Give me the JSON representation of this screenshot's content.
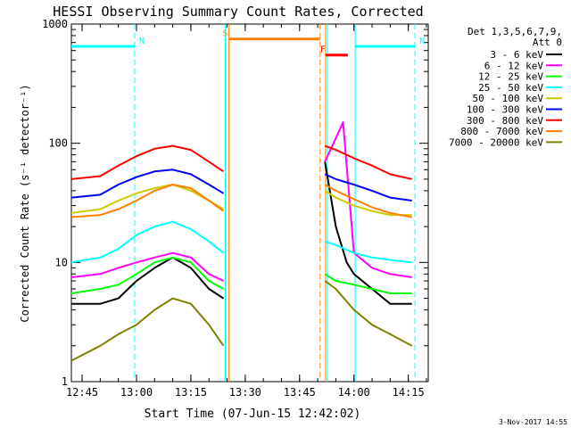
{
  "chart_data": {
    "type": "line",
    "title": "HESSI Observing Summary Count Rates, Corrected",
    "xlabel": "Start Time (07-Jun-15 12:42:02)",
    "ylabel": "Corrected Count Rate (s⁻¹ detector⁻¹)",
    "xscale": "time",
    "xlim": [
      "12:42:02",
      "14:20:30"
    ],
    "xticks": [
      "12:45",
      "13:00",
      "13:15",
      "13:30",
      "13:45",
      "14:00",
      "14:15"
    ],
    "yscale": "log",
    "ylim": [
      1,
      1000
    ],
    "yticks": [
      "1",
      "10",
      "100",
      "1000"
    ],
    "legend_position": "top-right",
    "legend_header": [
      "Det 1,3,5,6,7,9,",
      "Att 0"
    ],
    "series": [
      {
        "name": "3 - 6 keV",
        "color": "#000000",
        "segments": [
          {
            "x": [
              "12:42",
              "12:50",
              "12:55",
              "13:00",
              "13:05",
              "13:10",
              "13:15",
              "13:20",
              "13:24"
            ],
            "y": [
              4.5,
              4.5,
              5,
              7,
              9,
              11,
              9,
              6,
              5
            ]
          },
          {
            "x": [
              "13:52",
              "13:55",
              "13:58",
              "14:00",
              "14:05",
              "14:10",
              "14:16"
            ],
            "y": [
              70,
              20,
              10,
              8,
              6,
              4.5,
              4.5
            ]
          }
        ]
      },
      {
        "name": "6 - 12 keV",
        "color": "#ff00ff",
        "segments": [
          {
            "x": [
              "12:42",
              "12:50",
              "12:55",
              "13:00",
              "13:05",
              "13:10",
              "13:15",
              "13:20",
              "13:24"
            ],
            "y": [
              7.5,
              8,
              9,
              10,
              11,
              12,
              11,
              8,
              7
            ]
          },
          {
            "x": [
              "13:52",
              "13:55",
              "13:57",
              "14:00",
              "14:05",
              "14:10",
              "14:16"
            ],
            "y": [
              70,
              110,
              150,
              12,
              9,
              8,
              7.5
            ]
          }
        ]
      },
      {
        "name": "12 - 25 keV",
        "color": "#00ff00",
        "segments": [
          {
            "x": [
              "12:42",
              "12:50",
              "12:55",
              "13:00",
              "13:05",
              "13:10",
              "13:15",
              "13:20",
              "13:24"
            ],
            "y": [
              5.5,
              6,
              6.5,
              8,
              10,
              11,
              10,
              7,
              6
            ]
          },
          {
            "x": [
              "13:52",
              "13:55",
              "14:00",
              "14:05",
              "14:10",
              "14:16"
            ],
            "y": [
              8,
              7,
              6.5,
              6,
              5.5,
              5.5
            ]
          }
        ]
      },
      {
        "name": "25 - 50 keV",
        "color": "#00ffff",
        "segments": [
          {
            "x": [
              "12:42",
              "12:50",
              "12:55",
              "13:00",
              "13:05",
              "13:10",
              "13:15",
              "13:20",
              "13:24"
            ],
            "y": [
              10,
              11,
              13,
              17,
              20,
              22,
              19,
              15,
              12
            ]
          },
          {
            "x": [
              "13:52",
              "13:55",
              "14:00",
              "14:05",
              "14:10",
              "14:16"
            ],
            "y": [
              15,
              14,
              12,
              11,
              10.5,
              10
            ]
          }
        ]
      },
      {
        "name": "50 - 100 keV",
        "color": "#cccc00",
        "segments": [
          {
            "x": [
              "12:42",
              "12:50",
              "12:55",
              "13:00",
              "13:05",
              "13:10",
              "13:15",
              "13:20",
              "13:24"
            ],
            "y": [
              26,
              28,
              33,
              38,
              42,
              45,
              40,
              33,
              28
            ]
          },
          {
            "x": [
              "13:52",
              "13:55",
              "14:00",
              "14:05",
              "14:10",
              "14:16"
            ],
            "y": [
              40,
              35,
              30,
              27,
              25,
              25
            ]
          }
        ]
      },
      {
        "name": "100 - 300 keV",
        "color": "#0000ff",
        "segments": [
          {
            "x": [
              "12:42",
              "12:50",
              "12:55",
              "13:00",
              "13:05",
              "13:10",
              "13:15",
              "13:20",
              "13:24"
            ],
            "y": [
              35,
              37,
              45,
              52,
              58,
              60,
              55,
              45,
              38
            ]
          },
          {
            "x": [
              "13:52",
              "13:55",
              "14:00",
              "14:05",
              "14:10",
              "14:16"
            ],
            "y": [
              55,
              50,
              45,
              40,
              35,
              33
            ]
          }
        ]
      },
      {
        "name": "300 - 800 keV",
        "color": "#ff0000",
        "segments": [
          {
            "x": [
              "12:42",
              "12:50",
              "12:55",
              "13:00",
              "13:05",
              "13:10",
              "13:15",
              "13:20",
              "13:24"
            ],
            "y": [
              50,
              53,
              65,
              78,
              90,
              95,
              88,
              70,
              58
            ]
          },
          {
            "x": [
              "13:52",
              "13:55",
              "14:00",
              "14:05",
              "14:10",
              "14:16"
            ],
            "y": [
              95,
              88,
              75,
              65,
              55,
              50
            ]
          }
        ]
      },
      {
        "name": "800 - 7000 keV",
        "color": "#ff8000",
        "segments": [
          {
            "x": [
              "12:42",
              "12:50",
              "12:55",
              "13:00",
              "13:05",
              "13:10",
              "13:15",
              "13:20",
              "13:24"
            ],
            "y": [
              24,
              25,
              28,
              33,
              40,
              45,
              42,
              33,
              27
            ]
          },
          {
            "x": [
              "13:52",
              "13:55",
              "14:00",
              "14:05",
              "14:10",
              "14:16"
            ],
            "y": [
              45,
              40,
              34,
              29,
              26,
              24
            ]
          }
        ]
      },
      {
        "name": "7000 - 20000 keV",
        "color": "#808000",
        "segments": [
          {
            "x": [
              "12:42",
              "12:50",
              "12:55",
              "13:00",
              "13:05",
              "13:10",
              "13:15",
              "13:20",
              "13:24"
            ],
            "y": [
              1.5,
              2,
              2.5,
              3,
              4,
              5,
              4.5,
              3,
              2
            ]
          },
          {
            "x": [
              "13:52",
              "13:55",
              "14:00",
              "14:05",
              "14:10",
              "14:16"
            ],
            "y": [
              7,
              6,
              4,
              3,
              2.5,
              2
            ]
          }
        ]
      }
    ],
    "annotations": [
      {
        "label": "N",
        "color": "#00ffff",
        "x_start": "12:42:02",
        "x_end": "12:59:30",
        "level": 650,
        "style": "bar"
      },
      {
        "label": "N",
        "color": "#00ffff",
        "x_start": "14:00:20",
        "x_end": "14:16:50",
        "level": 650,
        "style": "bar"
      },
      {
        "label": "S",
        "color": "#ff8000",
        "x_start": "13:25:30",
        "x_end": "13:50:40",
        "level": 750,
        "style": "bar"
      },
      {
        "label": "F",
        "color": "#ff0000",
        "x_start": "13:52:10",
        "x_end": "13:58:20",
        "level": 550,
        "style": "bar"
      }
    ],
    "markers": [
      {
        "x": "12:59:30",
        "color": "#00ffff",
        "style": "dashed"
      },
      {
        "x": "13:24:30",
        "color": "#00ffff",
        "style": "solid"
      },
      {
        "x": "13:25:30",
        "color": "#ff8000",
        "style": "solid"
      },
      {
        "x": "13:50:40",
        "color": "#ff8000",
        "style": "dashed"
      },
      {
        "x": "13:52:10",
        "color": "#ff8000",
        "style": "solid"
      },
      {
        "x": "13:52:40",
        "color": "#00ffff",
        "style": "solid"
      },
      {
        "x": "14:00:20",
        "color": "#00ffff",
        "style": "solid"
      },
      {
        "x": "14:16:50",
        "color": "#00ffff",
        "style": "dashed"
      }
    ],
    "footer": "3-Nov-2017 14:55"
  }
}
